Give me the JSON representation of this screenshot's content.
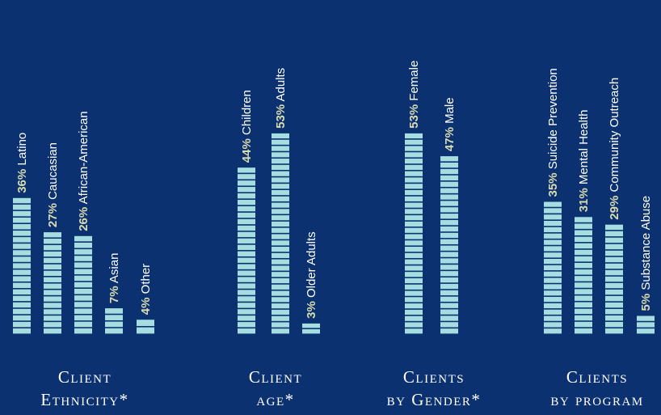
{
  "colors": {
    "background": "#0b3170",
    "bar": "#a6dde0",
    "percent_text": "#d8dcb0",
    "label_text": "#ffffff"
  },
  "chart_data": [
    {
      "type": "bar",
      "title_lines": [
        "Client",
        "Ethnicity*"
      ],
      "categories": [
        "Latino",
        "Caucasian",
        "African-American",
        "Asian",
        "Other"
      ],
      "values": [
        36,
        27,
        26,
        7,
        4
      ],
      "value_labels": [
        "36%",
        "27%",
        "26%",
        "7%",
        "4%"
      ],
      "unit": "%"
    },
    {
      "type": "bar",
      "title_lines": [
        "Client",
        "age*"
      ],
      "categories": [
        "Children",
        "Adults",
        "Older Adults"
      ],
      "values": [
        44,
        53,
        3
      ],
      "value_labels": [
        "44%",
        "53%",
        "3%"
      ],
      "unit": "%"
    },
    {
      "type": "bar",
      "title_lines": [
        "Clients",
        "by Gender*"
      ],
      "categories": [
        "Female",
        "Male"
      ],
      "values": [
        53,
        47
      ],
      "value_labels": [
        "53%",
        "47%"
      ],
      "unit": "%"
    },
    {
      "type": "bar",
      "title_lines": [
        "Clients",
        "by program"
      ],
      "categories": [
        "Suicide Prevention",
        "Mental Health",
        "Community Outreach",
        "Substance Abuse"
      ],
      "values": [
        35,
        31,
        29,
        5
      ],
      "value_labels": [
        "35%",
        "31%",
        "29%",
        "5%"
      ],
      "unit": "%"
    }
  ]
}
